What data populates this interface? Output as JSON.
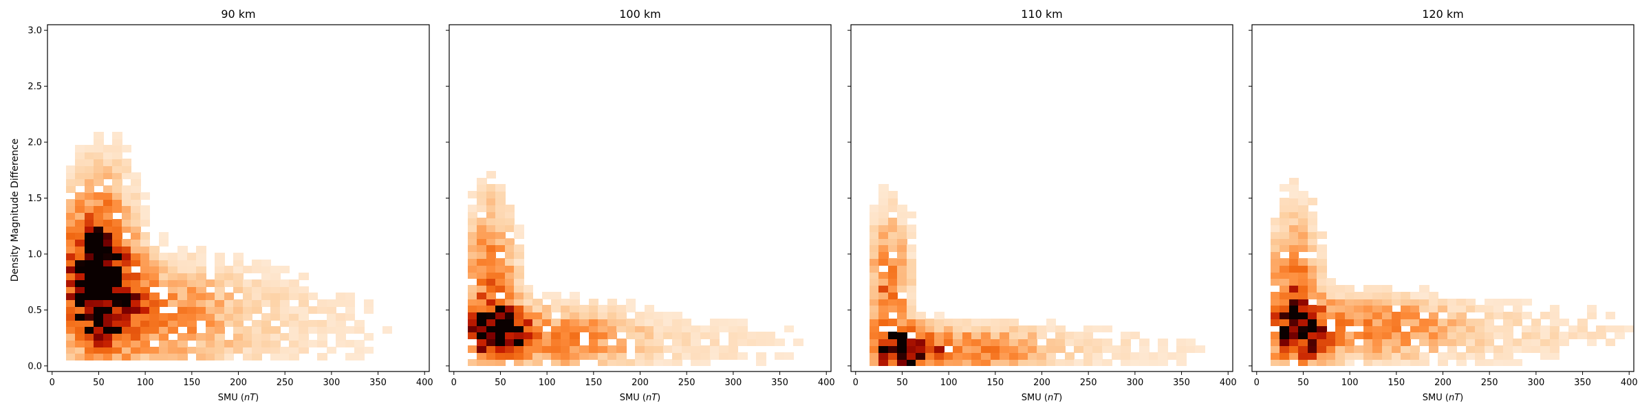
{
  "figure": {
    "ylabel": "Density Magnitude Difference",
    "xlabel": "SMU (nT)",
    "xlabel_prefix": "SMU (",
    "xlabel_unit": "nT",
    "xlabel_suffix": ")"
  },
  "chart_data": [
    {
      "type": "heatmap",
      "title": "90 km",
      "xlabel": "SMU (nT)",
      "ylabel": "Density Magnitude Difference",
      "xlim": [
        -5,
        405
      ],
      "ylim": [
        -0.05,
        3.05
      ],
      "xticks": [
        0,
        50,
        100,
        150,
        200,
        250,
        300,
        350,
        400
      ],
      "yticks": [
        0.0,
        0.5,
        1.0,
        1.5,
        2.0,
        2.5,
        3.0
      ],
      "colormap": "Oranges-to-black",
      "bin_size": {
        "x": 10,
        "y": 0.06
      },
      "density_model": {
        "blobs": [
          {
            "x": 55,
            "y": 0.62,
            "sx": 25,
            "sy": 0.33,
            "amp": 1.0
          },
          {
            "x": 45,
            "y": 0.95,
            "sx": 20,
            "sy": 0.35,
            "amp": 0.6
          },
          {
            "x": 120,
            "y": 0.45,
            "sx": 50,
            "sy": 0.3,
            "amp": 0.3
          },
          {
            "x": 220,
            "y": 0.4,
            "sx": 100,
            "sy": 0.35,
            "amp": 0.1
          },
          {
            "x": 55,
            "y": 1.4,
            "sx": 25,
            "sy": 0.4,
            "amp": 0.18
          }
        ],
        "xmin": 15,
        "xmax": 405,
        "ymin": 0.05,
        "ymax": 2.6
      }
    },
    {
      "type": "heatmap",
      "title": "100 km",
      "xlabel": "SMU (nT)",
      "xlim": [
        -5,
        405
      ],
      "ylim": [
        -0.05,
        3.05
      ],
      "xticks": [
        0,
        50,
        100,
        150,
        200,
        250,
        300,
        350,
        400
      ],
      "yticks": [
        0.0,
        0.5,
        1.0,
        1.5,
        2.0,
        2.5,
        3.0
      ],
      "colormap": "Oranges-to-black",
      "bin_size": {
        "x": 10,
        "y": 0.06
      },
      "density_model": {
        "blobs": [
          {
            "x": 48,
            "y": 0.3,
            "sx": 22,
            "sy": 0.15,
            "amp": 1.0
          },
          {
            "x": 40,
            "y": 0.7,
            "sx": 18,
            "sy": 0.35,
            "amp": 0.45
          },
          {
            "x": 120,
            "y": 0.25,
            "sx": 50,
            "sy": 0.18,
            "amp": 0.35
          },
          {
            "x": 250,
            "y": 0.2,
            "sx": 100,
            "sy": 0.2,
            "amp": 0.08
          },
          {
            "x": 40,
            "y": 1.3,
            "sx": 15,
            "sy": 0.3,
            "amp": 0.12
          }
        ],
        "xmin": 15,
        "xmax": 405,
        "ymin": 0.0,
        "ymax": 1.8
      }
    },
    {
      "type": "heatmap",
      "title": "110 km",
      "xlabel": "SMU (nT)",
      "xlim": [
        -5,
        405
      ],
      "ylim": [
        -0.05,
        3.05
      ],
      "xticks": [
        0,
        50,
        100,
        150,
        200,
        250,
        300,
        350,
        400
      ],
      "yticks": [
        0.0,
        0.5,
        1.0,
        1.5,
        2.0,
        2.5,
        3.0
      ],
      "colormap": "Oranges-to-black",
      "bin_size": {
        "x": 10,
        "y": 0.06
      },
      "density_model": {
        "blobs": [
          {
            "x": 52,
            "y": 0.15,
            "sx": 22,
            "sy": 0.12,
            "amp": 1.0
          },
          {
            "x": 35,
            "y": 0.6,
            "sx": 15,
            "sy": 0.35,
            "amp": 0.45
          },
          {
            "x": 120,
            "y": 0.15,
            "sx": 55,
            "sy": 0.13,
            "amp": 0.4
          },
          {
            "x": 260,
            "y": 0.15,
            "sx": 100,
            "sy": 0.15,
            "amp": 0.08
          },
          {
            "x": 40,
            "y": 1.2,
            "sx": 15,
            "sy": 0.3,
            "amp": 0.1
          }
        ],
        "xmin": 15,
        "xmax": 405,
        "ymin": 0.0,
        "ymax": 1.7
      }
    },
    {
      "type": "heatmap",
      "title": "120 km",
      "xlabel": "SMU (nT)",
      "xlim": [
        -5,
        405
      ],
      "ylim": [
        -0.05,
        3.05
      ],
      "xticks": [
        0,
        50,
        100,
        150,
        200,
        250,
        300,
        350,
        400
      ],
      "yticks": [
        0.0,
        0.5,
        1.0,
        1.5,
        2.0,
        2.5,
        3.0
      ],
      "colormap": "Oranges-to-black",
      "bin_size": {
        "x": 10,
        "y": 0.06
      },
      "density_model": {
        "blobs": [
          {
            "x": 48,
            "y": 0.3,
            "sx": 22,
            "sy": 0.17,
            "amp": 1.0
          },
          {
            "x": 40,
            "y": 0.75,
            "sx": 18,
            "sy": 0.3,
            "amp": 0.45
          },
          {
            "x": 130,
            "y": 0.35,
            "sx": 55,
            "sy": 0.18,
            "amp": 0.35
          },
          {
            "x": 280,
            "y": 0.3,
            "sx": 110,
            "sy": 0.2,
            "amp": 0.1
          },
          {
            "x": 45,
            "y": 1.3,
            "sx": 15,
            "sy": 0.3,
            "amp": 0.1
          }
        ],
        "xmin": 15,
        "xmax": 405,
        "ymin": 0.0,
        "ymax": 1.8
      }
    }
  ]
}
